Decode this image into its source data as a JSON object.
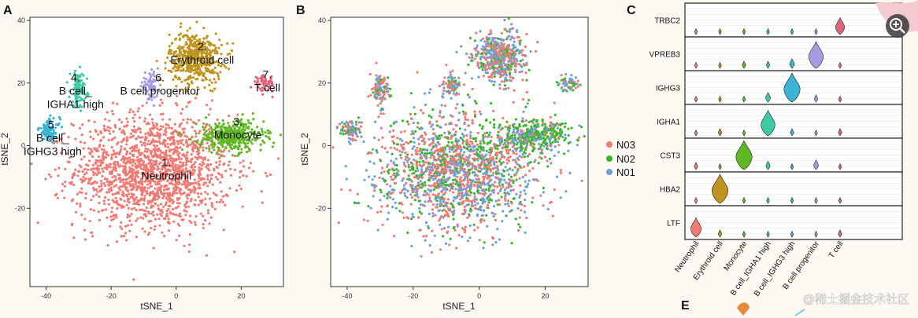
{
  "panels": {
    "a": "A",
    "b": "B",
    "c": "C",
    "e": "E"
  },
  "colors": {
    "neutrophil": "#f07b74",
    "erythroid": "#bf9520",
    "monocyte": "#5fb824",
    "bcell_igha1": "#3dcba6",
    "bcell_ighg3": "#3ab3d4",
    "bprog": "#a89be0",
    "tcell": "#e0657e",
    "n03": "#f07b74",
    "n02": "#3bb52a",
    "n01": "#6e9fdc"
  },
  "watermark": "@稀土掘金技术社区",
  "chart_data": [
    {
      "type": "scatter",
      "title": "A",
      "xlabel": "tSNE_1",
      "ylabel": "tSNE_2",
      "xlim": [
        -45,
        33
      ],
      "ylim": [
        -45,
        41
      ],
      "xticks": [
        -40,
        -20,
        0,
        20
      ],
      "yticks": [
        40,
        20,
        0,
        -20
      ],
      "clusters": [
        {
          "id": 1,
          "name": "Neutrophil",
          "num": "1.",
          "line1": "Neutrophil",
          "line2": "",
          "center": [
            -7,
            -8
          ],
          "spread": [
            12,
            9
          ],
          "color": "#f07b74",
          "label_at": [
            -3,
            -10
          ]
        },
        {
          "id": 2,
          "name": "Erythroid cell",
          "num": "2.",
          "line1": "Erythroid cell",
          "line2": "",
          "center": [
            6,
            28
          ],
          "spread": [
            4,
            4
          ],
          "color": "#bf9520",
          "label_at": [
            8,
            27
          ]
        },
        {
          "id": 3,
          "name": "Monocyte",
          "num": "3.",
          "line1": "Monocyte",
          "line2": "",
          "center": [
            17,
            3
          ],
          "spread": [
            5,
            2.5
          ],
          "color": "#5fb824",
          "label_at": [
            19,
            3
          ]
        },
        {
          "id": 4,
          "name": "B cell_IGHA1 high",
          "num": "4.",
          "line1": "B cell_",
          "line2": "IGHA1 high",
          "center": [
            -30,
            18
          ],
          "spread": [
            1.3,
            2.8
          ],
          "color": "#3dcba6",
          "label_at": [
            -31,
            17
          ]
        },
        {
          "id": 5,
          "name": "B cell_IGHG3 high",
          "num": "5.",
          "line1": "B cell_",
          "line2": "IGHG3 high",
          "center": [
            -39,
            5
          ],
          "spread": [
            1.6,
            1.8
          ],
          "color": "#3ab3d4",
          "label_at": [
            -38,
            2
          ]
        },
        {
          "id": 6,
          "name": "B cell progenitor",
          "num": "6.",
          "line1": "B cell progenitor",
          "line2": "",
          "center": [
            -8,
            19
          ],
          "spread": [
            1.3,
            2
          ],
          "color": "#a89be0",
          "label_at": [
            -5,
            17
          ]
        },
        {
          "id": 7,
          "name": "T cell",
          "num": "7.",
          "line1": "T cell",
          "line2": "",
          "center": [
            27,
            20
          ],
          "spread": [
            1.6,
            1.3
          ],
          "color": "#e0657e",
          "label_at": [
            28,
            18
          ]
        }
      ]
    },
    {
      "type": "scatter",
      "title": "B",
      "xlabel": "tSNE_1",
      "ylabel": "tSNE_2",
      "xlim": [
        -45,
        33
      ],
      "ylim": [
        -45,
        41
      ],
      "xticks": [
        -40,
        -20,
        0,
        20
      ],
      "yticks": [
        40,
        20,
        0,
        -20
      ],
      "series": [
        {
          "name": "N03",
          "color": "#f07b74"
        },
        {
          "name": "N02",
          "color": "#3bb52a"
        },
        {
          "name": "N01",
          "color": "#6e9fdc"
        }
      ]
    },
    {
      "type": "violin",
      "title": "C",
      "genes": [
        "TRBC2",
        "VPREB3",
        "IGHG3",
        "IGHA1",
        "CST3",
        "HBA2",
        "LTF"
      ],
      "categories": [
        "Neutrophil",
        "Erythroid cell",
        "Monocyte",
        "B cell_IGHA1 high",
        "B cell_IGHG3 high",
        "B cell progenitor",
        "T cell"
      ],
      "category_colors": [
        "#f07b74",
        "#bf9520",
        "#5fb824",
        "#3dcba6",
        "#3ab3d4",
        "#a89be0",
        "#e0657e"
      ],
      "expression": [
        [
          0.05,
          0.05,
          0.05,
          0.05,
          0.05,
          0.05,
          0.5
        ],
        [
          0.05,
          0.05,
          0.1,
          0.1,
          0.2,
          0.9,
          0.05
        ],
        [
          0.05,
          0.05,
          0.05,
          0.2,
          1.0,
          0.1,
          0.05
        ],
        [
          0.05,
          0.1,
          0.05,
          0.85,
          0.1,
          0.05,
          0.1
        ],
        [
          0.1,
          0.05,
          1.0,
          0.15,
          0.05,
          0.2,
          0.05
        ],
        [
          0.05,
          1.0,
          0.05,
          0.05,
          0.05,
          0.05,
          0.05
        ],
        [
          0.6,
          0.1,
          0.05,
          0.05,
          0.05,
          0.05,
          0.1
        ]
      ]
    }
  ]
}
